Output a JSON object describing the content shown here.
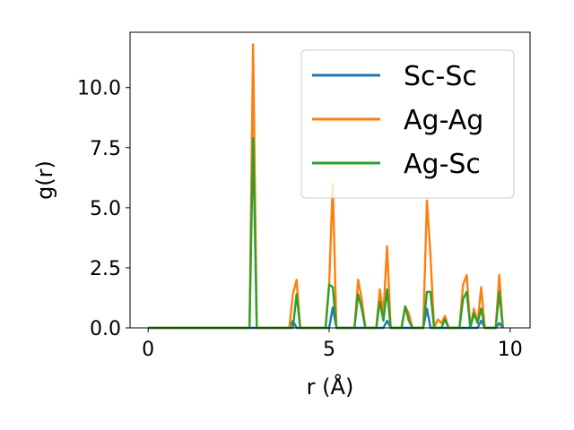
{
  "chart_data": {
    "type": "line",
    "xlabel": "r (Å)",
    "ylabel": "g(r)",
    "xlim": [
      -0.5,
      10.55
    ],
    "ylim": [
      0,
      12.3
    ],
    "xticks": [
      0,
      5,
      10
    ],
    "xtick_labels": [
      "0",
      "5",
      "10"
    ],
    "yticks": [
      0.0,
      2.5,
      5.0,
      7.5,
      10.0
    ],
    "ytick_labels": [
      "0.0",
      "2.5",
      "5.0",
      "7.5",
      "10.0"
    ],
    "grid": false,
    "legend_position": "top-right",
    "series": [
      {
        "name": "Sc-Sc",
        "color": "#1f77b4",
        "points": [
          [
            0,
            0
          ],
          [
            3.9,
            0
          ],
          [
            4.0,
            0.3
          ],
          [
            4.1,
            0
          ],
          [
            5.0,
            0
          ],
          [
            5.1,
            0.85
          ],
          [
            5.2,
            0
          ],
          [
            6.5,
            0
          ],
          [
            6.6,
            0.3
          ],
          [
            6.7,
            0
          ],
          [
            7.6,
            0
          ],
          [
            7.7,
            0.8
          ],
          [
            7.8,
            0
          ],
          [
            9.1,
            0
          ],
          [
            9.2,
            0.3
          ],
          [
            9.3,
            0
          ],
          [
            9.6,
            0
          ],
          [
            9.7,
            0.2
          ],
          [
            9.8,
            0
          ]
        ]
      },
      {
        "name": "Ag-Ag",
        "color": "#ff7f0e",
        "points": [
          [
            0,
            0
          ],
          [
            2.8,
            0
          ],
          [
            2.9,
            11.8
          ],
          [
            3.0,
            0
          ],
          [
            3.9,
            0
          ],
          [
            4.0,
            1.4
          ],
          [
            4.1,
            2.0
          ],
          [
            4.2,
            0
          ],
          [
            4.9,
            0
          ],
          [
            5.0,
            1.8
          ],
          [
            5.1,
            6.0
          ],
          [
            5.2,
            0
          ],
          [
            5.7,
            0
          ],
          [
            5.8,
            2.0
          ],
          [
            5.9,
            1.2
          ],
          [
            6.0,
            0
          ],
          [
            6.3,
            0
          ],
          [
            6.4,
            1.6
          ],
          [
            6.5,
            0.6
          ],
          [
            6.6,
            3.4
          ],
          [
            6.7,
            0
          ],
          [
            7.0,
            0
          ],
          [
            7.1,
            0.9
          ],
          [
            7.2,
            0.6
          ],
          [
            7.3,
            0
          ],
          [
            7.6,
            0
          ],
          [
            7.7,
            5.3
          ],
          [
            7.8,
            3.0
          ],
          [
            7.9,
            0
          ],
          [
            8.0,
            0.35
          ],
          [
            8.1,
            0.2
          ],
          [
            8.2,
            0.5
          ],
          [
            8.3,
            0
          ],
          [
            8.6,
            0
          ],
          [
            8.7,
            1.8
          ],
          [
            8.8,
            2.2
          ],
          [
            8.9,
            0
          ],
          [
            9.0,
            0.8
          ],
          [
            9.1,
            0.2
          ],
          [
            9.2,
            1.7
          ],
          [
            9.3,
            0
          ],
          [
            9.6,
            0
          ],
          [
            9.7,
            2.2
          ],
          [
            9.8,
            0
          ]
        ]
      },
      {
        "name": "Ag-Sc",
        "color": "#2ca02c",
        "points": [
          [
            0,
            0
          ],
          [
            2.8,
            0
          ],
          [
            2.9,
            7.9
          ],
          [
            3.0,
            0
          ],
          [
            4.0,
            0
          ],
          [
            4.1,
            1.4
          ],
          [
            4.2,
            0
          ],
          [
            4.9,
            0
          ],
          [
            5.0,
            1.8
          ],
          [
            5.1,
            1.7
          ],
          [
            5.2,
            0
          ],
          [
            5.7,
            0
          ],
          [
            5.8,
            1.4
          ],
          [
            5.9,
            0.8
          ],
          [
            6.0,
            0
          ],
          [
            6.3,
            0
          ],
          [
            6.4,
            1.1
          ],
          [
            6.5,
            0.3
          ],
          [
            6.6,
            1.6
          ],
          [
            6.7,
            0
          ],
          [
            7.0,
            0
          ],
          [
            7.1,
            0.9
          ],
          [
            7.2,
            0.3
          ],
          [
            7.3,
            0
          ],
          [
            7.6,
            0
          ],
          [
            7.7,
            1.5
          ],
          [
            7.8,
            1.5
          ],
          [
            7.9,
            0
          ],
          [
            8.1,
            0
          ],
          [
            8.2,
            0.35
          ],
          [
            8.3,
            0
          ],
          [
            8.6,
            0
          ],
          [
            8.7,
            1.2
          ],
          [
            8.8,
            1.5
          ],
          [
            8.9,
            0
          ],
          [
            9.0,
            0.6
          ],
          [
            9.1,
            0.2
          ],
          [
            9.2,
            0.8
          ],
          [
            9.3,
            0
          ],
          [
            9.6,
            0
          ],
          [
            9.7,
            1.5
          ],
          [
            9.8,
            0
          ]
        ]
      }
    ]
  }
}
